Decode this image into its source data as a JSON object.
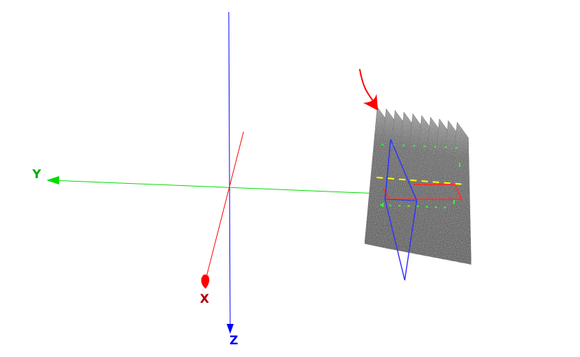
{
  "scene": {
    "background": "#ffffff",
    "axes": {
      "x": {
        "label": "X",
        "color": "#ff0000"
      },
      "y": {
        "label": "Y",
        "color": "#00dd00"
      },
      "z": {
        "label": "Z",
        "color": "#0000ff"
      }
    },
    "slice_stack": {
      "slice_count": 10,
      "slice_color": "#1a1a1a"
    },
    "overlay_colors": {
      "marker_arrow": "#ff0000",
      "frustum": "#3333ff",
      "rectangle": "#ff3333",
      "dashed_yellow": "#ffff00",
      "dashed_green": "#33ff33"
    }
  }
}
